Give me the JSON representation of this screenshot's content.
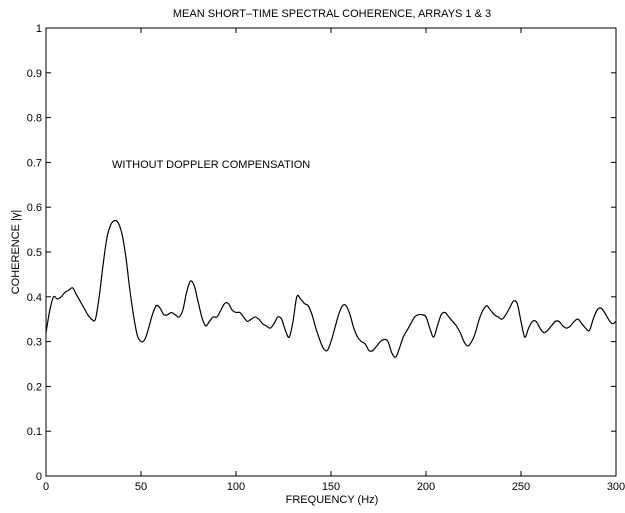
{
  "chart_data": {
    "type": "line",
    "title": "MEAN SHORT–TIME SPECTRAL COHERENCE, ARRAYS 1 & 3",
    "xlabel": "FREQUENCY (Hz)",
    "ylabel": "COHERENCE |γ|",
    "annotation": "WITHOUT DOPPLER COMPENSATION",
    "xlim": [
      0,
      300
    ],
    "ylim": [
      0,
      1
    ],
    "xticks": [
      0,
      50,
      100,
      150,
      200,
      250,
      300
    ],
    "yticks": [
      0,
      0.1,
      0.2,
      0.3,
      0.4,
      0.5,
      0.6,
      0.7,
      0.8,
      0.9,
      1
    ],
    "ytick_labels": [
      "0",
      "0.1",
      "0.2",
      "0.3",
      "0.4",
      "0.5",
      "0.6",
      "0.7",
      "0.8",
      "0.9",
      "1"
    ],
    "grid": false,
    "series": [
      {
        "color": "#000000",
        "x": [
          0,
          2,
          4,
          6,
          8,
          10,
          12,
          14,
          16,
          18,
          20,
          22,
          24,
          26,
          28,
          30,
          32,
          34,
          36,
          38,
          40,
          42,
          44,
          46,
          48,
          50,
          52,
          54,
          56,
          58,
          60,
          62,
          64,
          66,
          68,
          70,
          72,
          74,
          76,
          78,
          80,
          82,
          84,
          86,
          88,
          90,
          92,
          94,
          96,
          98,
          100,
          102,
          104,
          106,
          108,
          110,
          112,
          114,
          116,
          118,
          120,
          122,
          124,
          126,
          128,
          130,
          132,
          134,
          136,
          138,
          140,
          142,
          144,
          146,
          148,
          150,
          152,
          154,
          156,
          158,
          160,
          162,
          164,
          166,
          168,
          170,
          172,
          174,
          176,
          178,
          180,
          182,
          184,
          186,
          188,
          190,
          192,
          194,
          196,
          198,
          200,
          202,
          204,
          206,
          208,
          210,
          212,
          214,
          216,
          218,
          220,
          222,
          224,
          226,
          228,
          230,
          232,
          234,
          236,
          238,
          240,
          242,
          244,
          246,
          248,
          250,
          252,
          254,
          256,
          258,
          260,
          262,
          264,
          266,
          268,
          270,
          272,
          274,
          276,
          278,
          280,
          282,
          284,
          286,
          288,
          290,
          292,
          294,
          296,
          298,
          300
        ],
        "y": [
          0.32,
          0.37,
          0.4,
          0.395,
          0.4,
          0.41,
          0.415,
          0.42,
          0.405,
          0.39,
          0.375,
          0.36,
          0.35,
          0.35,
          0.4,
          0.47,
          0.53,
          0.56,
          0.57,
          0.565,
          0.54,
          0.49,
          0.42,
          0.36,
          0.315,
          0.3,
          0.305,
          0.33,
          0.36,
          0.38,
          0.375,
          0.36,
          0.36,
          0.365,
          0.36,
          0.355,
          0.37,
          0.41,
          0.435,
          0.425,
          0.39,
          0.355,
          0.335,
          0.345,
          0.355,
          0.355,
          0.37,
          0.385,
          0.385,
          0.37,
          0.365,
          0.365,
          0.355,
          0.345,
          0.35,
          0.355,
          0.35,
          0.34,
          0.335,
          0.33,
          0.34,
          0.355,
          0.35,
          0.325,
          0.31,
          0.345,
          0.4,
          0.395,
          0.385,
          0.38,
          0.36,
          0.33,
          0.305,
          0.285,
          0.28,
          0.3,
          0.33,
          0.36,
          0.38,
          0.38,
          0.36,
          0.33,
          0.31,
          0.3,
          0.295,
          0.28,
          0.28,
          0.29,
          0.3,
          0.305,
          0.3,
          0.275,
          0.265,
          0.285,
          0.31,
          0.325,
          0.34,
          0.355,
          0.36,
          0.36,
          0.355,
          0.33,
          0.31,
          0.335,
          0.36,
          0.365,
          0.355,
          0.345,
          0.335,
          0.32,
          0.3,
          0.29,
          0.3,
          0.32,
          0.35,
          0.37,
          0.38,
          0.37,
          0.36,
          0.355,
          0.35,
          0.36,
          0.375,
          0.39,
          0.385,
          0.345,
          0.31,
          0.33,
          0.345,
          0.345,
          0.33,
          0.32,
          0.325,
          0.335,
          0.345,
          0.345,
          0.335,
          0.33,
          0.335,
          0.345,
          0.35,
          0.34,
          0.33,
          0.325,
          0.35,
          0.37,
          0.375,
          0.365,
          0.35,
          0.34,
          0.345
        ]
      }
    ]
  }
}
